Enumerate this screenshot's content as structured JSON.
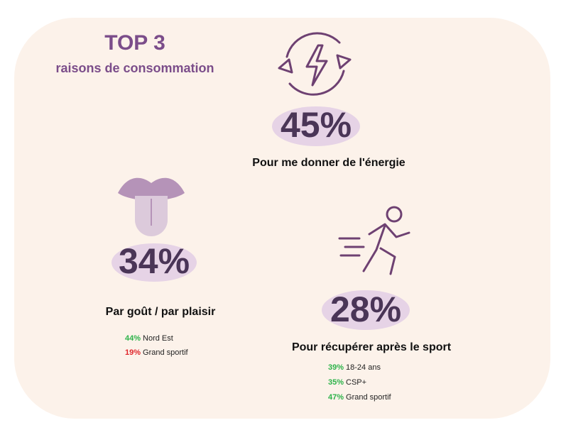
{
  "header": {
    "title": "TOP 3",
    "subtitle": "raisons de consommation"
  },
  "items": [
    {
      "percent": "45%",
      "label": "Pour me donner de l'énergie",
      "details": []
    },
    {
      "percent": "34%",
      "label": "Par goût / par plaisir",
      "details": [
        {
          "value": "44%",
          "text": "Nord Est",
          "color": "#2db34a"
        },
        {
          "value": "19%",
          "text": "Grand sportif",
          "color": "#e0262b"
        }
      ]
    },
    {
      "percent": "28%",
      "label": "Pour récupérer après le sport",
      "details": [
        {
          "value": "39%",
          "text": "18-24 ans",
          "color": "#2db34a"
        },
        {
          "value": "35%",
          "text": "CSP+",
          "color": "#2db34a"
        },
        {
          "value": "47%",
          "text": "Grand sportif",
          "color": "#2db34a"
        }
      ]
    }
  ]
}
